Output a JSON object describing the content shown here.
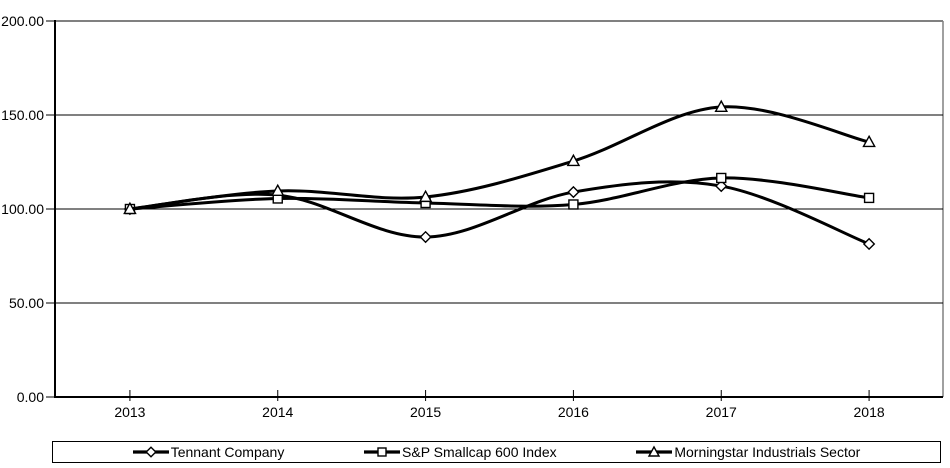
{
  "chart_data": {
    "type": "line",
    "title": "",
    "categories": [
      "2013",
      "2014",
      "2015",
      "2016",
      "2017",
      "2018"
    ],
    "series": [
      {
        "name": "Tennant Company",
        "marker": "diamond",
        "values": [
          100.0,
          107.4,
          85.1,
          109.0,
          112.2,
          81.4
        ]
      },
      {
        "name": "S&P Smallcap 600 Index",
        "marker": "square",
        "values": [
          100.0,
          105.6,
          103.2,
          102.4,
          116.5,
          105.9
        ]
      },
      {
        "name": "Morningstar Industrials Sector",
        "marker": "triangle",
        "values": [
          100.0,
          109.6,
          106.4,
          125.5,
          154.3,
          135.6
        ]
      }
    ],
    "xlabel": "",
    "ylabel": "",
    "ylim": [
      0,
      200
    ],
    "ytick_step": 50,
    "ytick_labels": [
      "0.00",
      "50.00",
      "100.00",
      "150.00",
      "200.00"
    ],
    "grid": true,
    "smoothed": true,
    "legend_position": "bottom"
  },
  "style": {
    "line_color": "#000000",
    "marker_fill": "#ffffff",
    "grid_color": "#000000",
    "axis_color": "#000000",
    "plot_border_color": "#808080",
    "background": "#ffffff",
    "text_color": "#000000"
  }
}
